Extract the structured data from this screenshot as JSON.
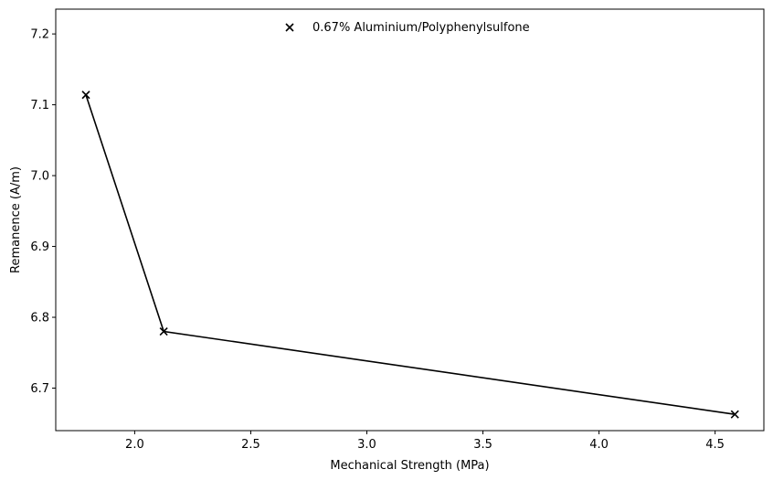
{
  "chart_data": {
    "type": "line",
    "title": "",
    "xlabel": "Mechanical Strength (MPa)",
    "ylabel": "Remanence (A/m)",
    "xlim": [
      1.66,
      4.71
    ],
    "ylim": [
      6.64,
      7.235
    ],
    "xticks": [
      2.0,
      2.5,
      3.0,
      3.5,
      4.0,
      4.5
    ],
    "xtick_labels": [
      "2.0",
      "2.5",
      "3.0",
      "3.5",
      "4.0",
      "4.5"
    ],
    "yticks": [
      6.7,
      6.8,
      6.9,
      7.0,
      7.1,
      7.2
    ],
    "ytick_labels": [
      "6.7",
      "6.8",
      "6.9",
      "7.0",
      "7.1",
      "7.2"
    ],
    "grid": false,
    "legend_position": "top-center",
    "series": [
      {
        "name": "0.67% Aluminium/Polyphenylsulfone",
        "color": "#000000",
        "marker": "x",
        "x": [
          1.79,
          2.125,
          4.585
        ],
        "y": [
          7.114,
          6.78,
          6.663
        ]
      }
    ]
  }
}
